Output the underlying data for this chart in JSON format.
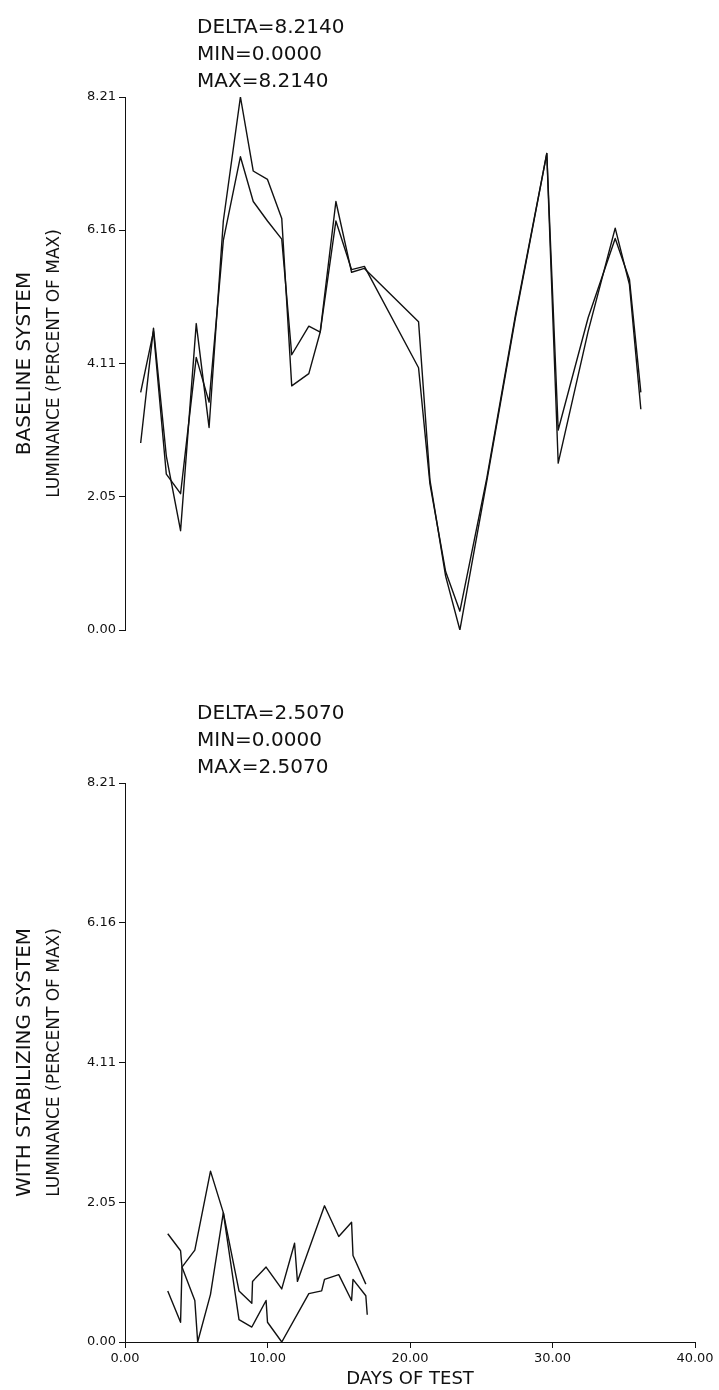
{
  "chart_data": [
    {
      "type": "line",
      "title": "BASELINE SYSTEM",
      "ylabel": "LUMINANCE (PERCENT OF MAX)",
      "annotations": [
        "DELTA=8.2140",
        "MIN=0.0000",
        "MAX=8.2140"
      ],
      "x": [
        1.1,
        2.0,
        2.9,
        3.9,
        5.0,
        5.9,
        6.9,
        8.1,
        9.0,
        10.0,
        11.0,
        11.7,
        12.9,
        13.7,
        14.8,
        15.9,
        16.8,
        20.6,
        21.4,
        22.5,
        23.5,
        25.4,
        27.4,
        29.6,
        30.4,
        32.5,
        34.4,
        35.4,
        36.2
      ],
      "series": [
        {
          "color": "#111111",
          "values": [
            2.88,
            4.65,
            2.68,
            1.53,
            4.72,
            3.12,
            6.3,
            8.21,
            7.07,
            6.94,
            6.34,
            3.76,
            3.95,
            4.59,
            6.6,
            5.51,
            5.57,
            4.75,
            2.31,
            0.83,
            0.0,
            2.31,
            4.81,
            7.34,
            2.57,
            4.6,
            6.19,
            5.32,
            3.4
          ]
        },
        {
          "color": "#111111",
          "values": [
            3.66,
            4.6,
            2.4,
            2.1,
            4.2,
            3.51,
            6.0,
            7.29,
            6.6,
            6.3,
            6.02,
            4.24,
            4.68,
            4.59,
            6.3,
            5.55,
            5.6,
            4.04,
            2.25,
            0.9,
            0.29,
            2.35,
            4.85,
            7.34,
            3.08,
            4.81,
            6.03,
            5.4,
            3.66
          ]
        }
      ],
      "xlim": [
        0,
        40
      ],
      "ylim": [
        0,
        8.21
      ],
      "yticks": [
        {
          "value": 0,
          "label": "0.00"
        },
        2.05,
        4.11,
        6.16,
        8.21
      ],
      "tick_labels": "y",
      "grid": false,
      "legend": false,
      "marker": "none",
      "line_style": "solid"
    },
    {
      "type": "line",
      "title": "WITH STABILIZING SYSTEM",
      "ylabel": "LUMINANCE (PERCENT OF MAX)",
      "xlabel": "DAYS OF TEST",
      "annotations": [
        "DELTA=2.5070",
        "MIN=0.0000",
        "MAX=2.5070"
      ],
      "series": [
        {
          "color": "#111111",
          "x": [
            3.0,
            3.9,
            4.0,
            4.9,
            5.1,
            6.0,
            6.9,
            8.0,
            8.9,
            8.95,
            9.9,
            11.0,
            11.9,
            12.1,
            14.0,
            15.0,
            15.9,
            16.0,
            16.9
          ],
          "values": [
            1.59,
            1.34,
            1.1,
            0.61,
            0.0,
            0.7,
            1.9,
            0.75,
            0.57,
            0.89,
            1.1,
            0.78,
            1.45,
            0.89,
            2.0,
            1.55,
            1.76,
            1.27,
            0.85
          ]
        },
        {
          "color": "#111111",
          "x": [
            3.0,
            3.9,
            4.0,
            4.9,
            6.0,
            6.9,
            8.0,
            8.9,
            9.9,
            10.0,
            11.0,
            12.9,
            13.8,
            14.0,
            15.0,
            15.9,
            16.0,
            16.9,
            17.0
          ],
          "values": [
            0.75,
            0.29,
            1.1,
            1.35,
            2.51,
            1.9,
            0.33,
            0.22,
            0.61,
            0.29,
            0.0,
            0.71,
            0.75,
            0.92,
            0.99,
            0.61,
            0.92,
            0.68,
            0.4
          ]
        }
      ],
      "xlim": [
        0,
        40
      ],
      "xticks": [
        {
          "value": 0,
          "label": "0.00"
        },
        {
          "value": 10,
          "label": "10.00"
        },
        {
          "value": 20,
          "label": "20.00"
        },
        {
          "value": 30,
          "label": "30.00"
        },
        {
          "value": 40,
          "label": "40.00"
        }
      ],
      "ylim": [
        0,
        8.21
      ],
      "yticks": [
        {
          "value": 0,
          "label": "0.00"
        },
        2.05,
        4.11,
        6.16,
        8.21
      ],
      "grid": false,
      "legend": false,
      "marker": "none",
      "line_style": "solid"
    }
  ]
}
